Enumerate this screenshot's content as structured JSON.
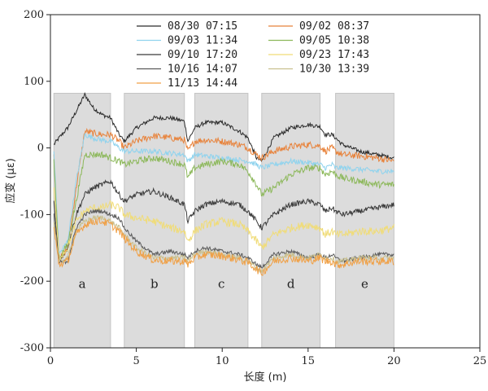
{
  "chart_data": {
    "type": "line",
    "title": "",
    "xlabel": "长度 (m)",
    "ylabel": "应变 (με)",
    "xlim": [
      0,
      25
    ],
    "ylim": [
      -300,
      200
    ],
    "xticks": [
      "0",
      "5",
      "10",
      "15",
      "20",
      "25"
    ],
    "yticks": [
      "-300",
      "-200",
      "-100",
      "0",
      "100",
      "200"
    ],
    "legend_position": "top",
    "regions": [
      {
        "label": "a",
        "x": [
          0.2,
          3.5
        ],
        "y": [
          -300,
          82
        ]
      },
      {
        "label": "b",
        "x": [
          4.3,
          7.8
        ],
        "y": [
          -300,
          82
        ]
      },
      {
        "label": "c",
        "x": [
          8.4,
          11.5
        ],
        "y": [
          -300,
          82
        ]
      },
      {
        "label": "d",
        "x": [
          12.3,
          15.7
        ],
        "y": [
          -300,
          82
        ]
      },
      {
        "label": "e",
        "x": [
          16.6,
          20.0
        ],
        "y": [
          -300,
          82
        ]
      }
    ],
    "series": [
      {
        "name": "08/30 07:15",
        "color": "#2b2b2b",
        "noise": 3,
        "x": [
          0.2,
          0.5,
          1.0,
          1.5,
          2.0,
          2.5,
          3.0,
          3.5,
          4.0,
          4.3,
          5.0,
          6.0,
          7.0,
          7.8,
          8.0,
          8.4,
          9.0,
          10.0,
          11.0,
          11.5,
          12.0,
          12.3,
          13.0,
          14.0,
          15.0,
          15.7,
          16.0,
          16.4,
          16.6,
          17.0,
          18.0,
          19.0,
          20.0
        ],
        "y": [
          5,
          15,
          30,
          55,
          80,
          60,
          50,
          45,
          20,
          10,
          30,
          45,
          45,
          40,
          10,
          30,
          38,
          38,
          25,
          15,
          -15,
          -20,
          15,
          30,
          35,
          32,
          20,
          20,
          15,
          5,
          -5,
          -10,
          -15
        ]
      },
      {
        "name": "09/02 08:37",
        "color": "#e8823a",
        "noise": 5,
        "x": [
          0.2,
          0.5,
          1.0,
          1.5,
          2.0,
          2.5,
          3.0,
          3.5,
          4.0,
          4.3,
          5.0,
          6.0,
          7.0,
          7.8,
          8.0,
          8.4,
          9.0,
          10.0,
          11.0,
          11.5,
          12.0,
          12.3,
          13.0,
          14.0,
          15.0,
          15.7,
          16.0,
          16.4,
          16.6,
          17.0,
          18.0,
          19.0,
          20.0
        ],
        "y": [
          -10,
          -170,
          -150,
          -60,
          25,
          22,
          20,
          20,
          10,
          0,
          10,
          18,
          15,
          12,
          -5,
          10,
          12,
          10,
          5,
          0,
          -10,
          -15,
          -5,
          2,
          5,
          3,
          -5,
          0,
          -5,
          -10,
          -12,
          -15,
          -20
        ]
      },
      {
        "name": "09/03 11:34",
        "color": "#8fd3ee",
        "noise": 4,
        "x": [
          0.2,
          0.5,
          1.0,
          1.5,
          2.0,
          2.5,
          3.0,
          3.5,
          4.0,
          4.3,
          5.0,
          6.0,
          7.0,
          7.8,
          8.0,
          8.4,
          9.0,
          10.0,
          11.0,
          11.5,
          12.0,
          12.3,
          13.0,
          14.0,
          15.0,
          15.7,
          16.0,
          16.4,
          16.6,
          17.0,
          18.0,
          19.0,
          20.0
        ],
        "y": [
          -5,
          -160,
          -140,
          -50,
          20,
          15,
          12,
          10,
          0,
          -5,
          -5,
          -5,
          -8,
          -10,
          -20,
          -10,
          -12,
          -15,
          -18,
          -20,
          -25,
          -30,
          -25,
          -20,
          -22,
          -25,
          -30,
          -25,
          -30,
          -30,
          -32,
          -35,
          -35
        ]
      },
      {
        "name": "09/05 10:38",
        "color": "#8cb85a",
        "noise": 5,
        "x": [
          0.2,
          0.5,
          1.0,
          1.5,
          2.0,
          2.5,
          3.0,
          3.5,
          4.0,
          4.3,
          5.0,
          6.0,
          7.0,
          7.8,
          8.0,
          8.4,
          9.0,
          10.0,
          11.0,
          11.5,
          12.0,
          12.3,
          13.0,
          14.0,
          15.0,
          15.7,
          16.0,
          16.4,
          16.6,
          17.0,
          18.0,
          19.0,
          20.0
        ],
        "y": [
          -20,
          -165,
          -145,
          -80,
          -10,
          -10,
          -10,
          -15,
          -20,
          -25,
          -20,
          -15,
          -20,
          -25,
          -45,
          -30,
          -25,
          -20,
          -25,
          -35,
          -55,
          -70,
          -60,
          -40,
          -30,
          -30,
          -40,
          -35,
          -40,
          -45,
          -50,
          -55,
          -55
        ]
      },
      {
        "name": "09/10 17:20",
        "color": "#3a3a3a",
        "noise": 4,
        "x": [
          0.2,
          0.5,
          1.0,
          1.5,
          2.0,
          2.5,
          3.0,
          3.5,
          4.0,
          4.3,
          5.0,
          6.0,
          7.0,
          7.8,
          8.0,
          8.4,
          9.0,
          10.0,
          11.0,
          11.5,
          12.0,
          12.3,
          13.0,
          14.0,
          15.0,
          15.7,
          16.0,
          16.4,
          16.6,
          17.0,
          18.0,
          19.0,
          20.0
        ],
        "y": [
          -80,
          -170,
          -150,
          -100,
          -70,
          -60,
          -55,
          -50,
          -70,
          -80,
          -70,
          -65,
          -75,
          -85,
          -110,
          -95,
          -85,
          -80,
          -85,
          -95,
          -110,
          -120,
          -100,
          -85,
          -80,
          -85,
          -95,
          -90,
          -95,
          -100,
          -95,
          -90,
          -85
        ]
      },
      {
        "name": "09/23 17:43",
        "color": "#f0dc78",
        "noise": 6,
        "x": [
          0.2,
          0.5,
          1.0,
          1.5,
          2.0,
          2.5,
          3.0,
          3.5,
          4.0,
          4.3,
          5.0,
          6.0,
          7.0,
          7.8,
          8.0,
          8.4,
          9.0,
          10.0,
          11.0,
          11.5,
          12.0,
          12.3,
          13.0,
          14.0,
          15.0,
          15.7,
          16.0,
          16.4,
          16.6,
          17.0,
          18.0,
          19.0,
          20.0
        ],
        "y": [
          -60,
          -165,
          -150,
          -110,
          -95,
          -90,
          -90,
          -85,
          -90,
          -100,
          -105,
          -110,
          -120,
          -125,
          -140,
          -125,
          -115,
          -110,
          -115,
          -125,
          -140,
          -150,
          -130,
          -120,
          -115,
          -120,
          -130,
          -125,
          -130,
          -130,
          -125,
          -125,
          -120
        ]
      },
      {
        "name": "10/16 14:07",
        "color": "#5a5a5a",
        "noise": 3,
        "x": [
          0.2,
          0.5,
          1.0,
          1.5,
          2.0,
          2.5,
          3.0,
          3.5,
          4.0,
          4.3,
          5.0,
          6.0,
          7.0,
          7.8,
          8.0,
          8.4,
          9.0,
          10.0,
          11.0,
          11.5,
          12.0,
          12.3,
          13.0,
          14.0,
          15.0,
          15.7,
          16.0,
          16.4,
          16.6,
          17.0,
          18.0,
          19.0,
          20.0
        ],
        "y": [
          -100,
          -172,
          -170,
          -120,
          -100,
          -95,
          -95,
          -100,
          -105,
          -120,
          -140,
          -160,
          -155,
          -160,
          -165,
          -155,
          -150,
          -155,
          -160,
          -165,
          -175,
          -180,
          -160,
          -155,
          -165,
          -160,
          -165,
          -160,
          -165,
          -170,
          -165,
          -160,
          -160
        ]
      },
      {
        "name": "10/30 13:39",
        "color": "#c9c08e",
        "noise": 4,
        "x": [
          0.2,
          0.5,
          1.0,
          1.5,
          2.0,
          2.5,
          3.0,
          3.5,
          4.0,
          4.3,
          5.0,
          6.0,
          7.0,
          7.8,
          8.0,
          8.4,
          9.0,
          10.0,
          11.0,
          11.5,
          12.0,
          12.3,
          13.0,
          14.0,
          15.0,
          15.7,
          16.0,
          16.4,
          16.6,
          17.0,
          18.0,
          19.0,
          20.0
        ],
        "y": [
          -110,
          -172,
          -165,
          -125,
          -110,
          -105,
          -105,
          -110,
          -120,
          -130,
          -150,
          -165,
          -165,
          -165,
          -170,
          -160,
          -155,
          -160,
          -165,
          -170,
          -180,
          -185,
          -165,
          -160,
          -165,
          -160,
          -165,
          -165,
          -170,
          -170,
          -165,
          -165,
          -165
        ]
      },
      {
        "name": "11/13 14:44",
        "color": "#f0a046",
        "noise": 6,
        "x": [
          0.2,
          0.5,
          1.0,
          1.5,
          2.0,
          2.5,
          3.0,
          3.5,
          4.0,
          4.3,
          5.0,
          6.0,
          7.0,
          7.8,
          8.0,
          8.4,
          9.0,
          10.0,
          11.0,
          11.5,
          12.0,
          12.3,
          13.0,
          14.0,
          15.0,
          15.7,
          16.0,
          16.4,
          16.6,
          17.0,
          18.0,
          19.0,
          20.0
        ],
        "y": [
          -120,
          -175,
          -170,
          -130,
          -115,
          -110,
          -110,
          -115,
          -125,
          -135,
          -155,
          -168,
          -170,
          -170,
          -175,
          -165,
          -160,
          -162,
          -168,
          -172,
          -182,
          -188,
          -170,
          -165,
          -170,
          -165,
          -170,
          -170,
          -175,
          -175,
          -170,
          -170,
          -170
        ]
      }
    ]
  }
}
